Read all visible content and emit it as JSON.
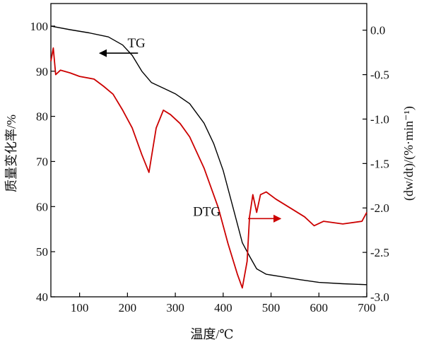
{
  "chart_data": {
    "type": "line",
    "xlabel": "温度/℃",
    "ylabel_left": "质量变化率/%",
    "ylabel_right": "(dw/dt)/(%·min⁻¹)",
    "xlim": [
      40,
      700
    ],
    "ylim_left": [
      40,
      105
    ],
    "ylim_right": [
      -3.0,
      0.3
    ],
    "x_ticks": [
      100,
      200,
      300,
      400,
      500,
      600,
      700
    ],
    "y_ticks_left": [
      40,
      50,
      60,
      70,
      80,
      90,
      100
    ],
    "y_ticks_right": [
      -3.0,
      -2.5,
      -2.0,
      -1.5,
      -1.0,
      -0.5,
      0.0
    ],
    "y_tick_labels_right": [
      "-3.0",
      "-2.5",
      "-2.0",
      "-1.5",
      "-1.0",
      "-0.5",
      "0.0"
    ],
    "grid": false,
    "series": [
      {
        "name": "TG",
        "axis": "left",
        "color": "#000000",
        "x": [
          40,
          80,
          120,
          160,
          190,
          210,
          230,
          250,
          270,
          300,
          330,
          360,
          380,
          400,
          420,
          440,
          455,
          470,
          490,
          520,
          560,
          600,
          650,
          700
        ],
        "y": [
          100,
          99.2,
          98.5,
          97.6,
          95.8,
          93.5,
          90,
          87.5,
          86.5,
          85,
          82.8,
          78.5,
          74,
          68,
          60,
          52,
          49,
          46.2,
          45,
          44.5,
          43.8,
          43.2,
          42.9,
          42.7
        ]
      },
      {
        "name": "DTG",
        "axis": "right",
        "color": "#cc0000",
        "x": [
          40,
          45,
          50,
          60,
          80,
          100,
          130,
          150,
          170,
          190,
          210,
          230,
          245,
          260,
          275,
          290,
          310,
          330,
          360,
          390,
          410,
          430,
          440,
          450,
          455,
          462,
          470,
          478,
          490,
          510,
          540,
          570,
          590,
          610,
          650,
          690,
          700
        ],
        "y": [
          -0.35,
          -0.2,
          -0.5,
          -0.45,
          -0.48,
          -0.52,
          -0.55,
          -0.63,
          -0.72,
          -0.9,
          -1.1,
          -1.4,
          -1.6,
          -1.1,
          -0.9,
          -0.95,
          -1.05,
          -1.2,
          -1.55,
          -2.0,
          -2.4,
          -2.75,
          -2.9,
          -2.6,
          -2.1,
          -1.85,
          -2.05,
          -1.85,
          -1.82,
          -1.9,
          -2.0,
          -2.1,
          -2.2,
          -2.15,
          -2.18,
          -2.15,
          -2.05
        ]
      }
    ],
    "annotations": [
      {
        "text": "TG",
        "points_to": "left",
        "data_x": 240,
        "data_y": 94
      },
      {
        "text": "DTG",
        "points_to": "right",
        "data_x": 455,
        "data_y": 54
      }
    ]
  }
}
